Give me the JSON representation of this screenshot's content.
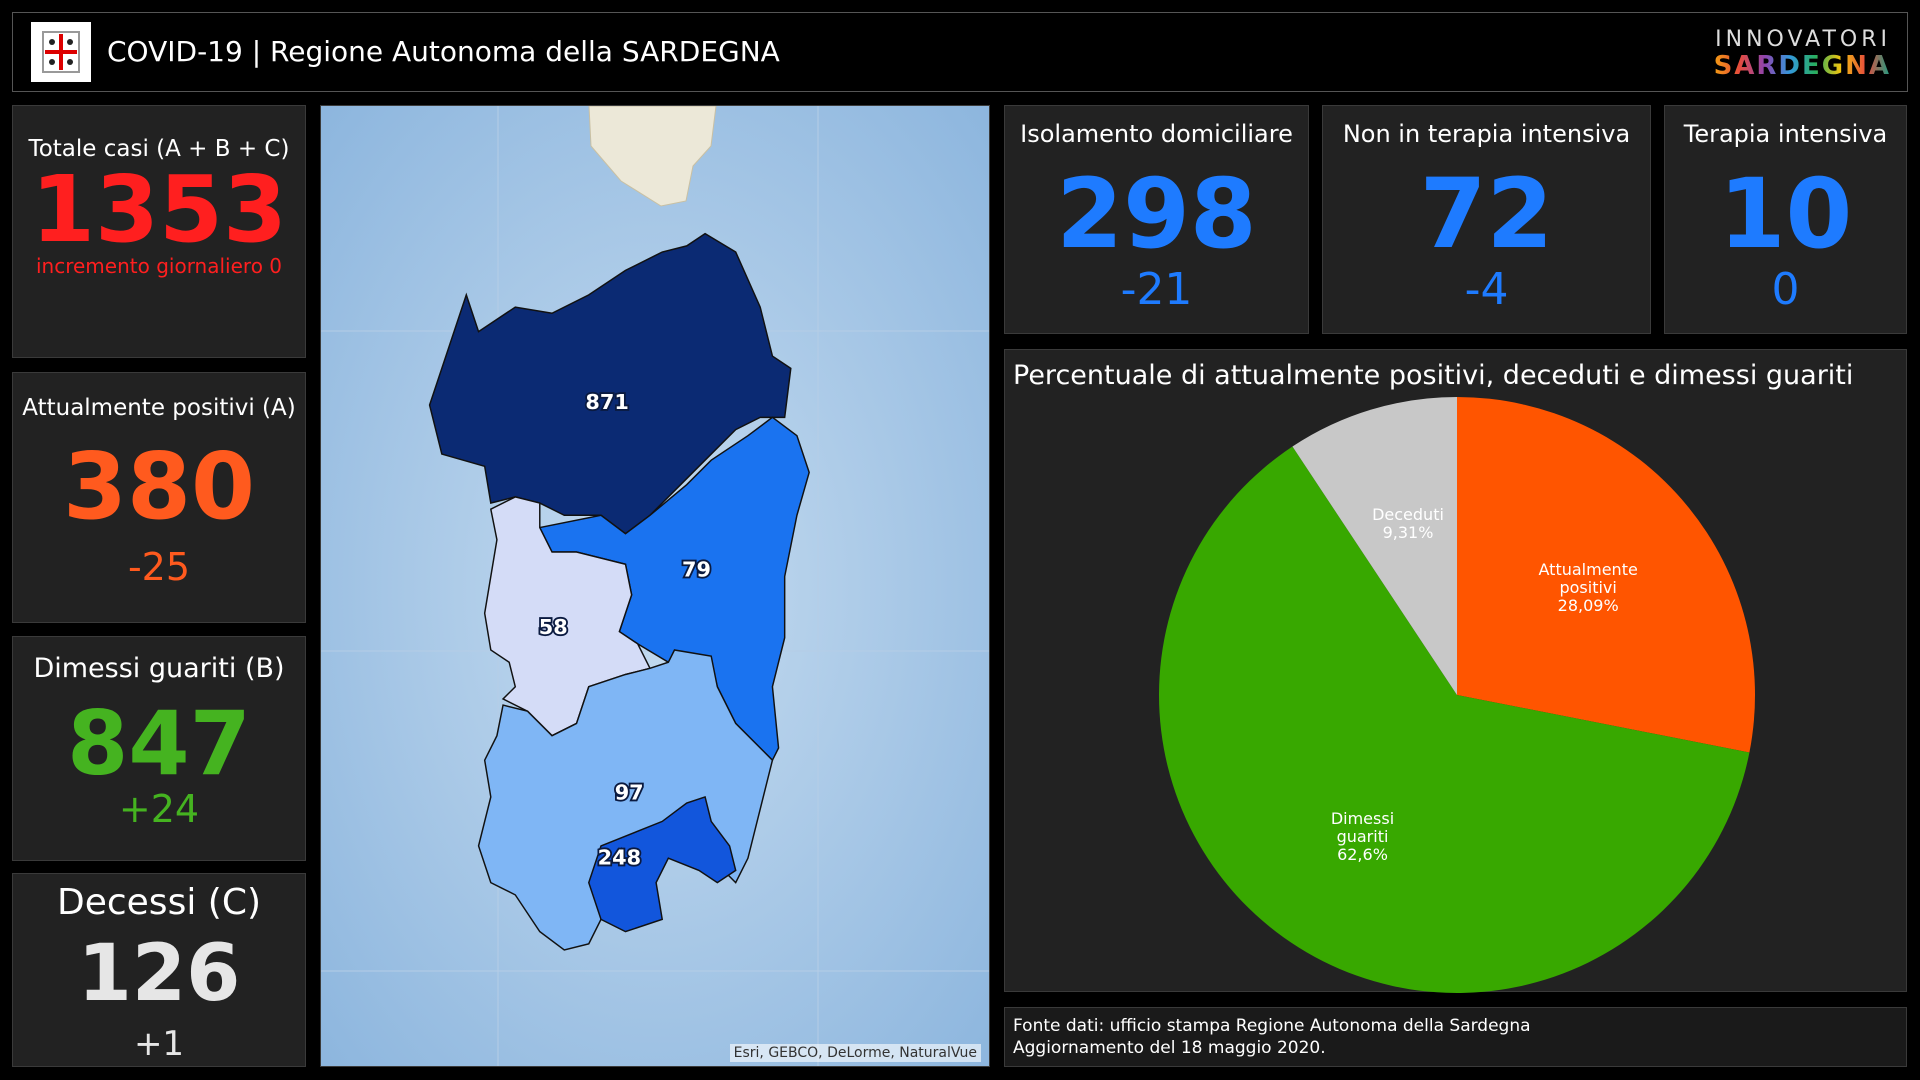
{
  "header": {
    "title": "COVID-19 | Regione Autonoma della SARDEGNA",
    "brand_top": "INNOVATORI",
    "brand_bottom": "SARDEGNA"
  },
  "totals": [
    {
      "label": "Totale casi (A + B + C)",
      "value": 1353,
      "note": "incremento giornaliero 0",
      "color": "#ff1f1f"
    },
    {
      "label": "Attualmente positivi (A)",
      "value": 380,
      "note": "-25",
      "color": "#ff5a1e"
    },
    {
      "label": "Dimessi guariti (B)",
      "value": 847,
      "note": "+24",
      "color": "#45b320"
    },
    {
      "label": "Decessi (C)",
      "value": 126,
      "note": "+1",
      "color": "#e6e6e6"
    }
  ],
  "details": [
    {
      "label": "Isolamento domiciliare",
      "value": 298,
      "note": "-21"
    },
    {
      "label": "Non in terapia intensiva",
      "value": 72,
      "note": "-4"
    },
    {
      "label": "Terapia intensiva",
      "value": 10,
      "note": "0"
    }
  ],
  "map": {
    "attribution": "Esri, GEBCO, DeLorme, NaturalVue",
    "regions": [
      {
        "value": 871,
        "color": "#0b2a73"
      },
      {
        "value": 79,
        "color": "#1a73f0"
      },
      {
        "value": 58,
        "color": "#d4dcf7"
      },
      {
        "value": 97,
        "color": "#7fb6f5"
      },
      {
        "value": 248,
        "color": "#1256dc"
      }
    ]
  },
  "chart_data": {
    "type": "pie",
    "title": "Percentuale di attualmente positivi, deceduti e dimessi guariti",
    "categories": [
      "Attualmente positivi",
      "Dimessi guariti",
      "Deceduti"
    ],
    "values": [
      28.09,
      62.6,
      9.31
    ],
    "value_labels": [
      "28,09%",
      "62,6%",
      "9,31%"
    ],
    "colors": [
      "#ff5500",
      "#38a800",
      "#c8c8c8"
    ]
  },
  "footer": {
    "line1": "Fonte dati: ufficio stampa Regione Autonoma della Sardegna",
    "line2": "Aggiornamento del 18 maggio 2020."
  }
}
